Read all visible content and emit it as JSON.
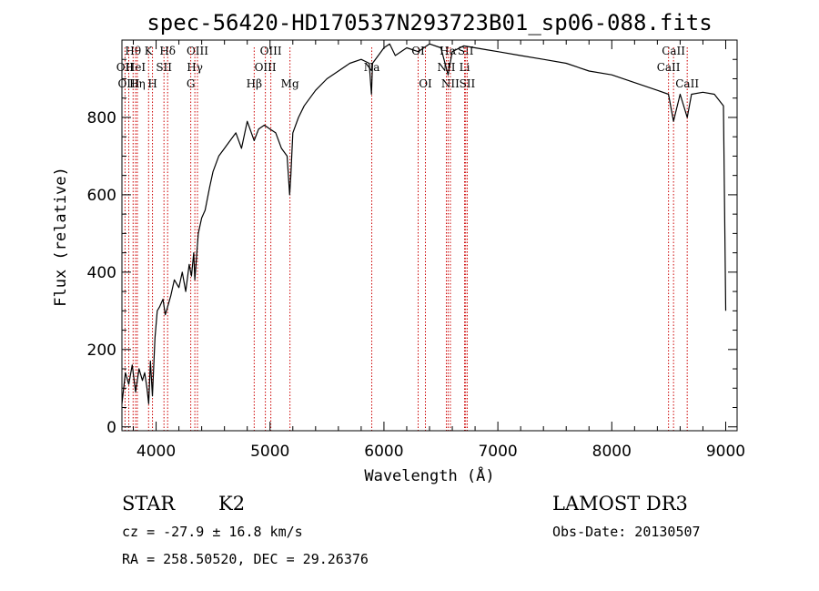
{
  "chart_data": {
    "type": "line",
    "title": "spec-56420-HD170537N293723B01_sp06-088.fits",
    "xlabel": "Wavelength (Å)",
    "ylabel": "Flux (relative)",
    "xlim": [
      3700,
      9100
    ],
    "ylim": [
      -10,
      1000
    ],
    "xticks": [
      4000,
      5000,
      6000,
      7000,
      8000,
      9000
    ],
    "yticks": [
      0,
      200,
      400,
      600,
      800
    ],
    "series": [
      {
        "x": [
          3700,
          3730,
          3760,
          3790,
          3820,
          3850,
          3880,
          3900,
          3920,
          3935,
          3950,
          3968,
          3990,
          4010,
          4030,
          4060,
          4080,
          4101,
          4130,
          4160,
          4200,
          4230,
          4260,
          4290,
          4310,
          4330,
          4340,
          4370,
          4400,
          4430,
          4470,
          4500,
          4550,
          4600,
          4650,
          4700,
          4750,
          4800,
          4861,
          4900,
          4950,
          5000,
          5050,
          5100,
          5150,
          5172,
          5183,
          5200,
          5250,
          5300,
          5400,
          5500,
          5600,
          5700,
          5800,
          5870,
          5890,
          5900,
          5950,
          6000,
          6050,
          6100,
          6200,
          6300,
          6400,
          6500,
          6563,
          6600,
          6700,
          6800,
          6900,
          7000,
          7200,
          7400,
          7600,
          7800,
          8000,
          8200,
          8400,
          8498,
          8542,
          8600,
          8662,
          8700,
          8800,
          8900,
          8980,
          9000
        ],
        "y": [
          60,
          140,
          110,
          160,
          90,
          150,
          120,
          140,
          100,
          60,
          170,
          80,
          230,
          300,
          310,
          330,
          290,
          310,
          340,
          380,
          360,
          400,
          350,
          420,
          390,
          450,
          380,
          500,
          540,
          560,
          620,
          660,
          700,
          720,
          740,
          760,
          720,
          790,
          740,
          770,
          780,
          770,
          760,
          720,
          700,
          600,
          650,
          760,
          800,
          830,
          870,
          900,
          920,
          940,
          950,
          940,
          860,
          940,
          960,
          980,
          990,
          960,
          980,
          970,
          990,
          980,
          910,
          970,
          985,
          980,
          975,
          970,
          960,
          950,
          940,
          920,
          910,
          890,
          870,
          860,
          790,
          860,
          800,
          860,
          865,
          860,
          830,
          300
        ]
      }
    ],
    "line_markers": [
      {
        "label": "Hθ",
        "x": 3798,
        "row": 0
      },
      {
        "label": "OII",
        "x": 3727,
        "row": 1
      },
      {
        "label": "OIII",
        "x": 3760,
        "row": 2
      },
      {
        "label": "K",
        "x": 3934,
        "row": 0
      },
      {
        "label": "HeI",
        "x": 3820,
        "row": 1
      },
      {
        "label": "Hη",
        "x": 3835,
        "row": 2
      },
      {
        "label": "SII",
        "x": 4069,
        "row": 1
      },
      {
        "label": "H",
        "x": 3968,
        "row": 2
      },
      {
        "label": "Hδ",
        "x": 4101,
        "row": 0
      },
      {
        "label": "OIII",
        "x": 4363,
        "row": 0
      },
      {
        "label": "Hγ",
        "x": 4340,
        "row": 1
      },
      {
        "label": "G",
        "x": 4304,
        "row": 2
      },
      {
        "label": "Hβ",
        "x": 4861,
        "row": 2
      },
      {
        "label": "OIII",
        "x": 5007,
        "row": 0
      },
      {
        "label": "OIII",
        "x": 4959,
        "row": 1
      },
      {
        "label": "Mg",
        "x": 5175,
        "row": 2
      },
      {
        "label": "Na",
        "x": 5893,
        "row": 1
      },
      {
        "label": "OI",
        "x": 6300,
        "row": 0
      },
      {
        "label": "OI",
        "x": 6364,
        "row": 2
      },
      {
        "label": "NII",
        "x": 6548,
        "row": 1
      },
      {
        "label": "Hα",
        "x": 6563,
        "row": 0
      },
      {
        "label": "NII",
        "x": 6583,
        "row": 2
      },
      {
        "label": "SII",
        "x": 6717,
        "row": 0
      },
      {
        "label": "Li",
        "x": 6708,
        "row": 1
      },
      {
        "label": "SII",
        "x": 6731,
        "row": 2
      },
      {
        "label": "CaII",
        "x": 8542,
        "row": 0
      },
      {
        "label": "CaII",
        "x": 8498,
        "row": 1
      },
      {
        "label": "CaII",
        "x": 8662,
        "row": 2
      }
    ]
  },
  "info": {
    "object_class": "STAR",
    "subclass": "K2",
    "survey": "LAMOST DR3",
    "cz": "cz = -27.9 ± 16.8 km/s",
    "obs_date": "Obs-Date: 20130507",
    "coords": "RA = 258.50520, DEC =  29.26376"
  }
}
